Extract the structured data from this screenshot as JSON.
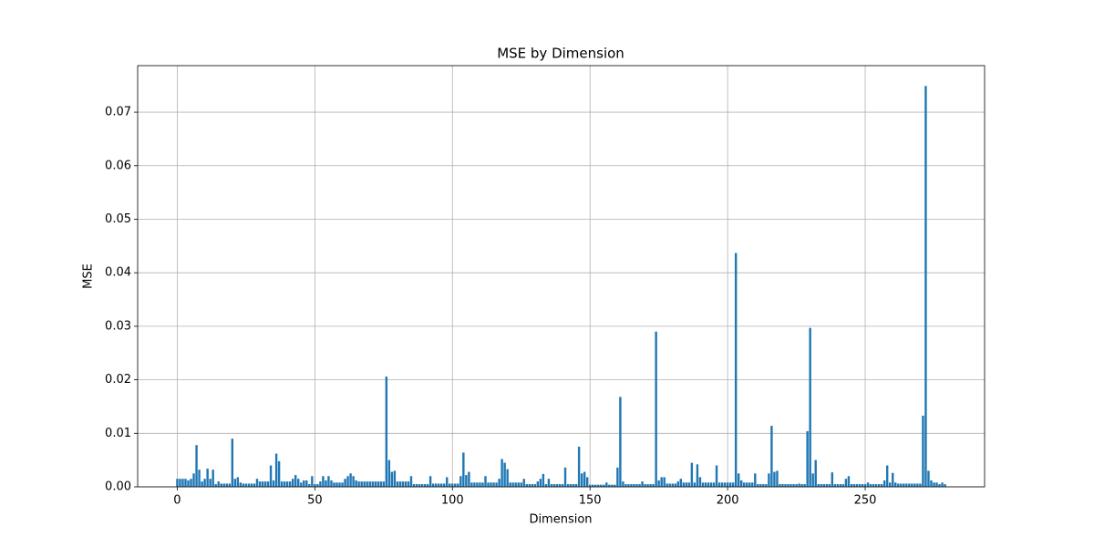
{
  "chart_data": {
    "type": "bar",
    "title": "MSE by Dimension",
    "xlabel": "Dimension",
    "ylabel": "MSE",
    "color": "#1f77b4",
    "grid": true,
    "x": [
      0,
      1,
      2,
      3,
      4,
      5,
      6,
      7,
      8,
      9,
      10,
      11,
      12,
      13,
      14,
      15,
      16,
      17,
      18,
      19,
      20,
      21,
      22,
      23,
      24,
      25,
      26,
      27,
      28,
      29,
      30,
      31,
      32,
      33,
      34,
      35,
      36,
      37,
      38,
      39,
      40,
      41,
      42,
      43,
      44,
      45,
      46,
      47,
      48,
      49,
      50,
      51,
      52,
      53,
      54,
      55,
      56,
      57,
      58,
      59,
      60,
      61,
      62,
      63,
      64,
      65,
      66,
      67,
      68,
      69,
      70,
      71,
      72,
      73,
      74,
      75,
      76,
      77,
      78,
      79,
      80,
      81,
      82,
      83,
      84,
      85,
      86,
      87,
      88,
      89,
      90,
      91,
      92,
      93,
      94,
      95,
      96,
      97,
      98,
      99,
      100,
      101,
      102,
      103,
      104,
      105,
      106,
      107,
      108,
      109,
      110,
      111,
      112,
      113,
      114,
      115,
      116,
      117,
      118,
      119,
      120,
      121,
      122,
      123,
      124,
      125,
      126,
      127,
      128,
      129,
      130,
      131,
      132,
      133,
      134,
      135,
      136,
      137,
      138,
      139,
      140,
      141,
      142,
      143,
      144,
      145,
      146,
      147,
      148,
      149,
      150,
      151,
      152,
      153,
      154,
      155,
      156,
      157,
      158,
      159,
      160,
      161,
      162,
      163,
      164,
      165,
      166,
      167,
      168,
      169,
      170,
      171,
      172,
      173,
      174,
      175,
      176,
      177,
      178,
      179,
      180,
      181,
      182,
      183,
      184,
      185,
      186,
      187,
      188,
      189,
      190,
      191,
      192,
      193,
      194,
      195,
      196,
      197,
      198,
      199,
      200,
      201,
      202,
      203,
      204,
      205,
      206,
      207,
      208,
      209,
      210,
      211,
      212,
      213,
      214,
      215,
      216,
      217,
      218,
      219,
      220,
      221,
      222,
      223,
      224,
      225,
      226,
      227,
      228,
      229,
      230,
      231,
      232,
      233,
      234,
      235,
      236,
      237,
      238,
      239,
      240,
      241,
      242,
      243,
      244,
      245,
      246,
      247,
      248,
      249,
      250,
      251,
      252,
      253,
      254,
      255,
      256,
      257,
      258,
      259,
      260,
      261,
      262,
      263,
      264,
      265,
      266,
      267,
      268,
      269,
      270,
      271,
      272,
      273,
      274,
      275,
      276,
      277,
      278,
      279
    ],
    "values": [
      0.0015,
      0.0015,
      0.0015,
      0.0015,
      0.0012,
      0.0015,
      0.0025,
      0.0078,
      0.0032,
      0.001,
      0.0015,
      0.0034,
      0.0015,
      0.0032,
      0.0005,
      0.001,
      0.0006,
      0.0006,
      0.0006,
      0.0006,
      0.009,
      0.0015,
      0.0018,
      0.0008,
      0.0006,
      0.0006,
      0.0006,
      0.0006,
      0.0006,
      0.0015,
      0.001,
      0.001,
      0.001,
      0.001,
      0.004,
      0.0012,
      0.0062,
      0.0048,
      0.001,
      0.001,
      0.001,
      0.001,
      0.0015,
      0.0022,
      0.0015,
      0.0008,
      0.0012,
      0.0012,
      0.0005,
      0.002,
      0.0005,
      0.0005,
      0.001,
      0.002,
      0.0012,
      0.002,
      0.0012,
      0.0008,
      0.0008,
      0.0008,
      0.0008,
      0.0015,
      0.002,
      0.0025,
      0.002,
      0.0012,
      0.001,
      0.001,
      0.001,
      0.001,
      0.001,
      0.001,
      0.001,
      0.001,
      0.001,
      0.001,
      0.0206,
      0.005,
      0.0028,
      0.003,
      0.001,
      0.001,
      0.001,
      0.001,
      0.001,
      0.002,
      0.0005,
      0.0005,
      0.0005,
      0.0005,
      0.0005,
      0.0005,
      0.002,
      0.0006,
      0.0006,
      0.0006,
      0.0006,
      0.0006,
      0.0018,
      0.0006,
      0.0006,
      0.0006,
      0.0006,
      0.002,
      0.0064,
      0.0022,
      0.0028,
      0.0008,
      0.0008,
      0.0008,
      0.0008,
      0.0008,
      0.002,
      0.0008,
      0.0008,
      0.0008,
      0.0008,
      0.0015,
      0.0052,
      0.0045,
      0.0033,
      0.0008,
      0.0008,
      0.0008,
      0.0008,
      0.0008,
      0.0015,
      0.0005,
      0.0005,
      0.0005,
      0.0005,
      0.001,
      0.0015,
      0.0024,
      0.0005,
      0.0015,
      0.0005,
      0.0005,
      0.0005,
      0.0005,
      0.0005,
      0.0036,
      0.0005,
      0.0005,
      0.0005,
      0.0005,
      0.0075,
      0.0025,
      0.0028,
      0.0018,
      0.0004,
      0.0004,
      0.0004,
      0.0004,
      0.0004,
      0.0004,
      0.0008,
      0.0004,
      0.0004,
      0.0004,
      0.0036,
      0.0168,
      0.001,
      0.0005,
      0.0005,
      0.0005,
      0.0005,
      0.0005,
      0.0005,
      0.001,
      0.0005,
      0.0005,
      0.0005,
      0.0005,
      0.029,
      0.0012,
      0.0018,
      0.0018,
      0.0006,
      0.0006,
      0.0006,
      0.0006,
      0.001,
      0.0015,
      0.0008,
      0.0008,
      0.0008,
      0.0045,
      0.0008,
      0.0042,
      0.0018,
      0.0008,
      0.0008,
      0.0008,
      0.0008,
      0.0008,
      0.004,
      0.0008,
      0.0008,
      0.0008,
      0.0008,
      0.0008,
      0.0008,
      0.0437,
      0.0025,
      0.0012,
      0.0008,
      0.0008,
      0.0008,
      0.0008,
      0.0025,
      0.0005,
      0.0005,
      0.0005,
      0.0005,
      0.0025,
      0.0114,
      0.0028,
      0.003,
      0.0005,
      0.0005,
      0.0005,
      0.0005,
      0.0005,
      0.0005,
      0.0005,
      0.0006,
      0.0005,
      0.0005,
      0.0104,
      0.0297,
      0.0025,
      0.005,
      0.0005,
      0.0005,
      0.0005,
      0.0005,
      0.0005,
      0.0027,
      0.0005,
      0.0005,
      0.0005,
      0.0005,
      0.0015,
      0.002,
      0.0005,
      0.0005,
      0.0005,
      0.0005,
      0.0005,
      0.0005,
      0.0008,
      0.0005,
      0.0005,
      0.0005,
      0.0005,
      0.0005,
      0.0012,
      0.004,
      0.0008,
      0.0026,
      0.0008,
      0.0006,
      0.0006,
      0.0006,
      0.0006,
      0.0006,
      0.0006,
      0.0006,
      0.0006,
      0.0006,
      0.0133,
      0.0749,
      0.003,
      0.0012,
      0.0008,
      0.0008,
      0.0005,
      0.0008,
      0.0005
    ],
    "bar_width": 0.8,
    "xlim": [
      -14.39,
      293.39
    ],
    "xticks": [
      0,
      50,
      100,
      150,
      200,
      250
    ],
    "ylim": [
      0,
      0.0787
    ],
    "yticks": [
      {
        "value": 0,
        "label": "0.00"
      },
      {
        "value": 0.01,
        "label": "0.01"
      },
      {
        "value": 0.02,
        "label": "0.02"
      },
      {
        "value": 0.03,
        "label": "0.03"
      },
      {
        "value": 0.04,
        "label": "0.04"
      },
      {
        "value": 0.05,
        "label": "0.05"
      },
      {
        "value": 0.06,
        "label": "0.06"
      },
      {
        "value": 0.07,
        "label": "0.07"
      }
    ]
  }
}
